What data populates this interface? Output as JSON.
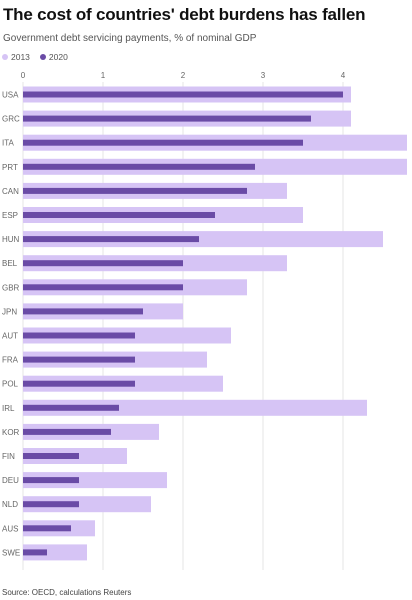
{
  "header": {
    "title": "The cost of countries' debt burdens has fallen",
    "subtitle": "Government debt servicing payments, % of nominal GDP"
  },
  "source": "Source: OECD, calculations Reuters",
  "colors": {
    "series_2013": "#d6c4f5",
    "series_2020": "#6a4ba6",
    "axis_text": "#666666",
    "gridline": "#e6e6e6"
  },
  "chart_data": {
    "type": "bar",
    "orientation": "horizontal",
    "xlim": [
      0,
      4.5
    ],
    "x_ticks": [
      0,
      1,
      2,
      3,
      4
    ],
    "grid": true,
    "legend_position": "top-left",
    "categories": [
      "USA",
      "GRC",
      "ITA",
      "PRT",
      "CAN",
      "ESP",
      "HUN",
      "BEL",
      "GBR",
      "JPN",
      "AUT",
      "FRA",
      "POL",
      "IRL",
      "KOR",
      "FIN",
      "DEU",
      "NLD",
      "AUS",
      "SWE"
    ],
    "series": [
      {
        "name": "2013",
        "values": [
          4.1,
          4.1,
          4.8,
          4.8,
          3.3,
          3.5,
          4.5,
          3.3,
          2.8,
          2.0,
          2.6,
          2.3,
          2.5,
          4.3,
          1.7,
          1.3,
          1.8,
          1.6,
          0.9,
          0.8
        ]
      },
      {
        "name": "2020",
        "values": [
          4.0,
          3.6,
          3.5,
          2.9,
          2.8,
          2.4,
          2.2,
          2.0,
          2.0,
          1.5,
          1.4,
          1.4,
          1.4,
          1.2,
          1.1,
          0.7,
          0.7,
          0.7,
          0.6,
          0.3
        ]
      }
    ]
  }
}
